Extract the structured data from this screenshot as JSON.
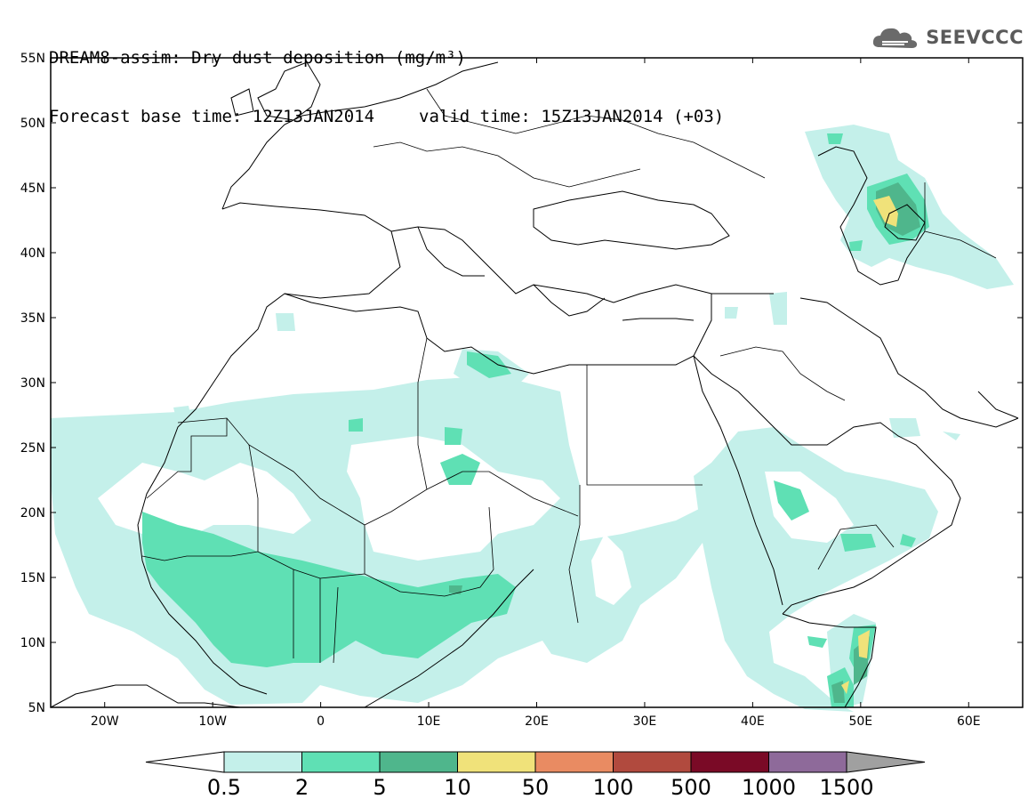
{
  "title": {
    "line1": "DREAM8-assim: Dry dust deposition (mg/m³)",
    "base_time": "Forecast base time: 12Z13JAN2014",
    "valid_time": "valid time: 15Z13JAN2014 (+03)"
  },
  "logo": {
    "text": "SEEVCCC",
    "icon": "cloud-icon"
  },
  "map": {
    "lon_range": [
      -25,
      65
    ],
    "lat_range": [
      5,
      55
    ],
    "lon_ticks": [
      {
        "value": -20,
        "label": "20W"
      },
      {
        "value": -10,
        "label": "10W"
      },
      {
        "value": 0,
        "label": "0"
      },
      {
        "value": 10,
        "label": "10E"
      },
      {
        "value": 20,
        "label": "20E"
      },
      {
        "value": 30,
        "label": "30E"
      },
      {
        "value": 40,
        "label": "40E"
      },
      {
        "value": 50,
        "label": "50E"
      },
      {
        "value": 60,
        "label": "60E"
      }
    ],
    "lat_ticks": [
      {
        "value": 55,
        "label": "55N"
      },
      {
        "value": 50,
        "label": "50N"
      },
      {
        "value": 45,
        "label": "45N"
      },
      {
        "value": 40,
        "label": "40N"
      },
      {
        "value": 35,
        "label": "35N"
      },
      {
        "value": 30,
        "label": "30N"
      },
      {
        "value": 25,
        "label": "25N"
      },
      {
        "value": 20,
        "label": "20N"
      },
      {
        "value": 15,
        "label": "15N"
      },
      {
        "value": 10,
        "label": "10N"
      },
      {
        "value": 5,
        "label": "5N"
      }
    ]
  },
  "colorbar": {
    "colors": [
      "#c4f0ea",
      "#5fe0b4",
      "#4fb68c",
      "#f0e27a",
      "#e98b62",
      "#b14a3e",
      "#7a0a26",
      "#8e6a9a"
    ],
    "under_color": "#ffffff",
    "over_color": "#a0a0a0",
    "labels": [
      "0.5",
      "2",
      "5",
      "10",
      "50",
      "100",
      "500",
      "1000",
      "1500"
    ]
  }
}
